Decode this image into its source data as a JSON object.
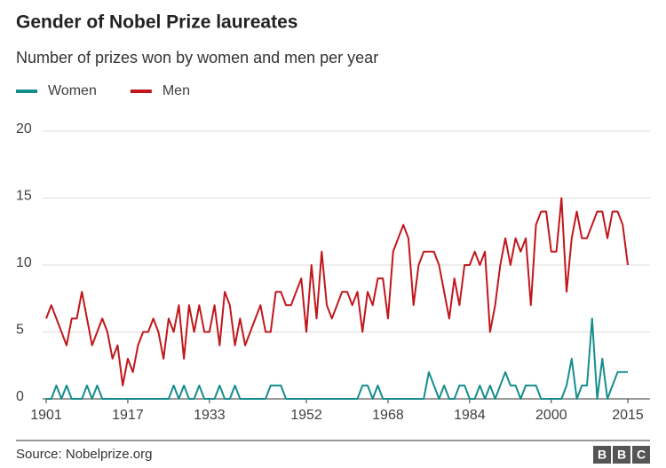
{
  "chart_data": {
    "type": "line",
    "title": "Gender of Nobel Prize laureates",
    "subtitle": "Number of prizes won by women and men per year",
    "x": [
      1901,
      1902,
      1903,
      1904,
      1905,
      1906,
      1907,
      1908,
      1909,
      1910,
      1911,
      1912,
      1913,
      1914,
      1915,
      1916,
      1917,
      1918,
      1919,
      1920,
      1921,
      1922,
      1923,
      1924,
      1925,
      1926,
      1927,
      1928,
      1929,
      1930,
      1931,
      1932,
      1933,
      1934,
      1935,
      1936,
      1937,
      1938,
      1939,
      1940,
      1941,
      1942,
      1943,
      1944,
      1945,
      1946,
      1947,
      1948,
      1949,
      1950,
      1951,
      1952,
      1953,
      1954,
      1955,
      1956,
      1957,
      1958,
      1959,
      1960,
      1961,
      1962,
      1963,
      1964,
      1965,
      1966,
      1967,
      1968,
      1969,
      1970,
      1971,
      1972,
      1973,
      1974,
      1975,
      1976,
      1977,
      1978,
      1979,
      1980,
      1981,
      1982,
      1983,
      1984,
      1985,
      1986,
      1987,
      1988,
      1989,
      1990,
      1991,
      1992,
      1993,
      1994,
      1995,
      1996,
      1997,
      1998,
      1999,
      2000,
      2001,
      2002,
      2003,
      2004,
      2005,
      2006,
      2007,
      2008,
      2009,
      2010,
      2011,
      2012,
      2013,
      2014,
      2015
    ],
    "series": [
      {
        "name": "Women",
        "color": "#168d8d",
        "values": [
          0,
          0,
          1,
          0,
          1,
          0,
          0,
          0,
          1,
          0,
          1,
          0,
          0,
          0,
          0,
          0,
          0,
          0,
          0,
          0,
          0,
          0,
          0,
          0,
          0,
          1,
          0,
          1,
          0,
          0,
          1,
          0,
          0,
          0,
          1,
          0,
          0,
          1,
          0,
          0,
          0,
          0,
          0,
          0,
          1,
          1,
          1,
          0,
          0,
          0,
          0,
          0,
          0,
          0,
          0,
          0,
          0,
          0,
          0,
          0,
          0,
          0,
          1,
          1,
          0,
          1,
          0,
          0,
          0,
          0,
          0,
          0,
          0,
          0,
          0,
          2,
          1,
          0,
          1,
          0,
          0,
          1,
          1,
          0,
          0,
          1,
          0,
          1,
          0,
          1,
          2,
          1,
          1,
          0,
          1,
          1,
          1,
          0,
          0,
          0,
          0,
          0,
          1,
          3,
          0,
          1,
          1,
          6,
          0,
          3,
          0,
          1,
          2,
          2,
          2
        ]
      },
      {
        "name": "Men",
        "color": "#c0171c",
        "values": [
          6,
          7,
          6,
          5,
          4,
          6,
          6,
          8,
          6,
          4,
          5,
          6,
          5,
          3,
          4,
          1,
          3,
          2,
          4,
          5,
          5,
          6,
          5,
          3,
          6,
          5,
          7,
          3,
          7,
          5,
          7,
          5,
          5,
          7,
          4,
          8,
          7,
          4,
          6,
          4,
          5,
          6,
          7,
          5,
          5,
          8,
          8,
          7,
          7,
          8,
          9,
          5,
          10,
          6,
          11,
          7,
          6,
          7,
          8,
          8,
          7,
          8,
          5,
          8,
          7,
          9,
          9,
          6,
          11,
          12,
          13,
          12,
          7,
          10,
          11,
          11,
          11,
          10,
          8,
          6,
          9,
          7,
          10,
          10,
          11,
          10,
          11,
          5,
          7,
          10,
          12,
          10,
          12,
          11,
          12,
          7,
          13,
          14,
          14,
          11,
          11,
          15,
          8,
          12,
          14,
          12,
          12,
          13,
          14,
          14,
          12,
          14,
          14,
          13,
          10
        ]
      }
    ],
    "xlim": [
      1901,
      2015
    ],
    "xticks": [
      1901,
      1917,
      1933,
      1952,
      1968,
      1984,
      2000,
      2015
    ],
    "ylim": [
      0,
      20
    ],
    "yticks": [
      0,
      5,
      10,
      15,
      20
    ],
    "grid": true,
    "source": "Source: Nobelprize.org",
    "logo": [
      "B",
      "B",
      "C"
    ]
  }
}
